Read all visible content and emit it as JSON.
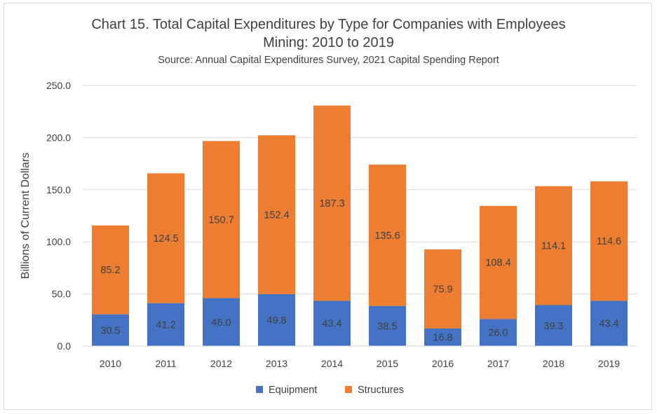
{
  "chart_data": {
    "type": "bar",
    "stacked": true,
    "title": "Chart 15. Total Capital Expenditures by Type for Companies with Employees",
    "subtitle": "Mining:  2010 to 2019",
    "source": "Source: Annual Capital Expenditures Survey, 2021 Capital Spending Report",
    "xlabel": "",
    "ylabel": "Billions of Current Dollars",
    "ylim": [
      0,
      250
    ],
    "yticks": [
      "0.0",
      "50.0",
      "100.0",
      "150.0",
      "200.0",
      "250.0"
    ],
    "grid": true,
    "legend_position": "bottom",
    "categories": [
      "2010",
      "2011",
      "2012",
      "2013",
      "2014",
      "2015",
      "2016",
      "2017",
      "2018",
      "2019"
    ],
    "series": [
      {
        "name": "Equipment",
        "color": "#4472c4",
        "values": [
          30.5,
          41.2,
          46.0,
          49.8,
          43.4,
          38.5,
          16.8,
          26.0,
          39.3,
          43.4
        ],
        "labels": [
          "30.5",
          "41.2",
          "46.0",
          "49.8",
          "43.4",
          "38.5",
          "16.8",
          "26.0",
          "39.3",
          "43.4"
        ]
      },
      {
        "name": "Structures",
        "color": "#ed7d31",
        "values": [
          85.2,
          124.5,
          150.7,
          152.4,
          187.3,
          135.6,
          75.9,
          108.4,
          114.1,
          114.6
        ],
        "labels": [
          "85.2",
          "124.5",
          "150.7",
          "152.4",
          "187.3",
          "135.6",
          "75.9",
          "108.4",
          "114.1",
          "114.6"
        ]
      }
    ]
  }
}
